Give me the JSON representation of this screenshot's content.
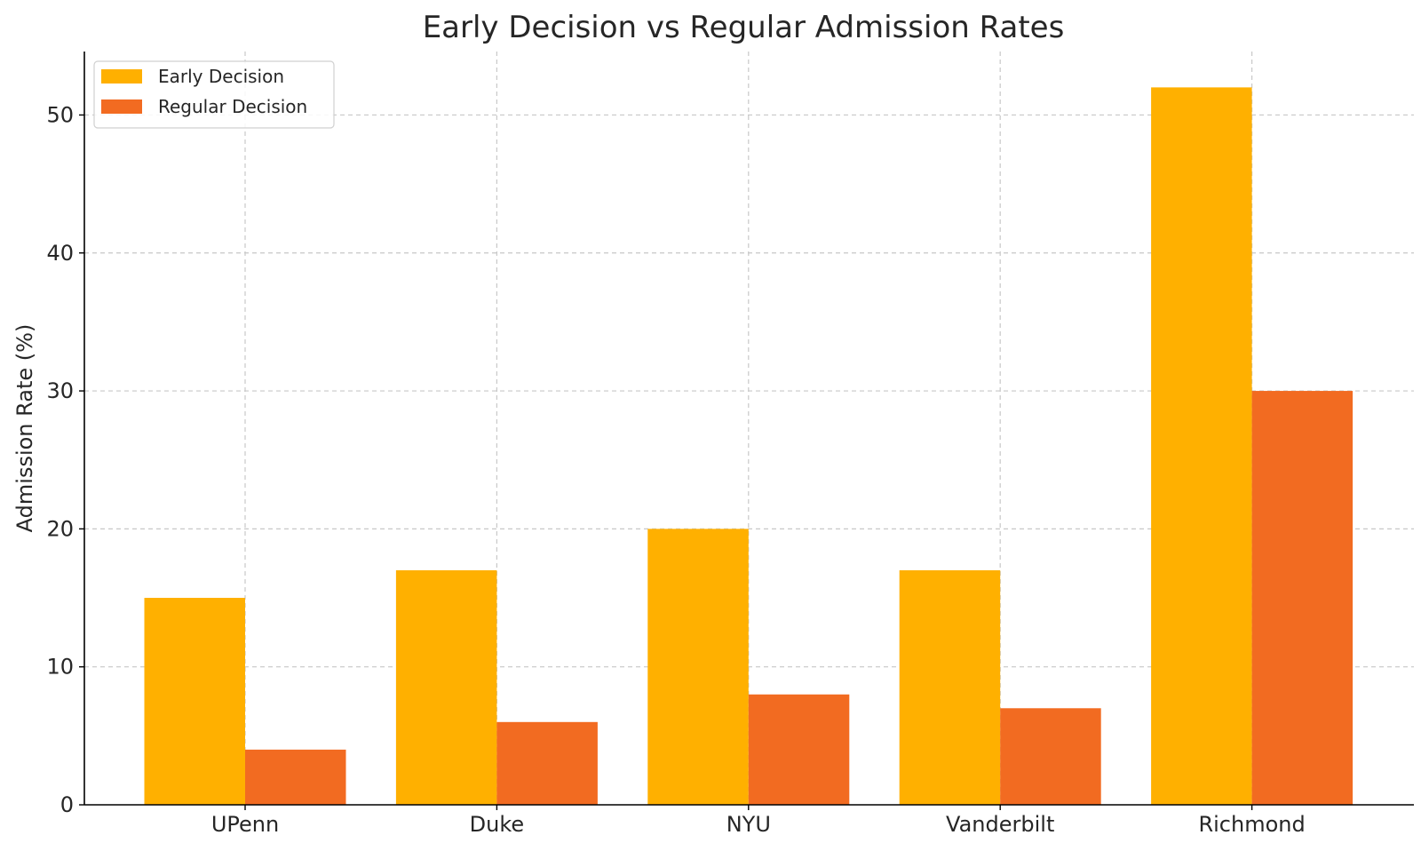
{
  "chart_data": {
    "type": "bar",
    "title": "Early Decision vs Regular Admission Rates",
    "xlabel": "",
    "ylabel": "Admission Rate (%)",
    "categories": [
      "UPenn",
      "Duke",
      "NYU",
      "Vanderbilt",
      "Richmond"
    ],
    "series": [
      {
        "name": "Early Decision",
        "color": "#FFB000",
        "values": [
          15,
          17,
          20,
          17,
          52
        ]
      },
      {
        "name": "Regular Decision",
        "color": "#F26B21",
        "values": [
          4,
          6,
          8,
          7,
          30
        ]
      }
    ],
    "ylim": [
      0,
      54.6
    ],
    "yticks": [
      0,
      10,
      20,
      30,
      40,
      50
    ],
    "grid": true,
    "legend_position": "top-left"
  }
}
